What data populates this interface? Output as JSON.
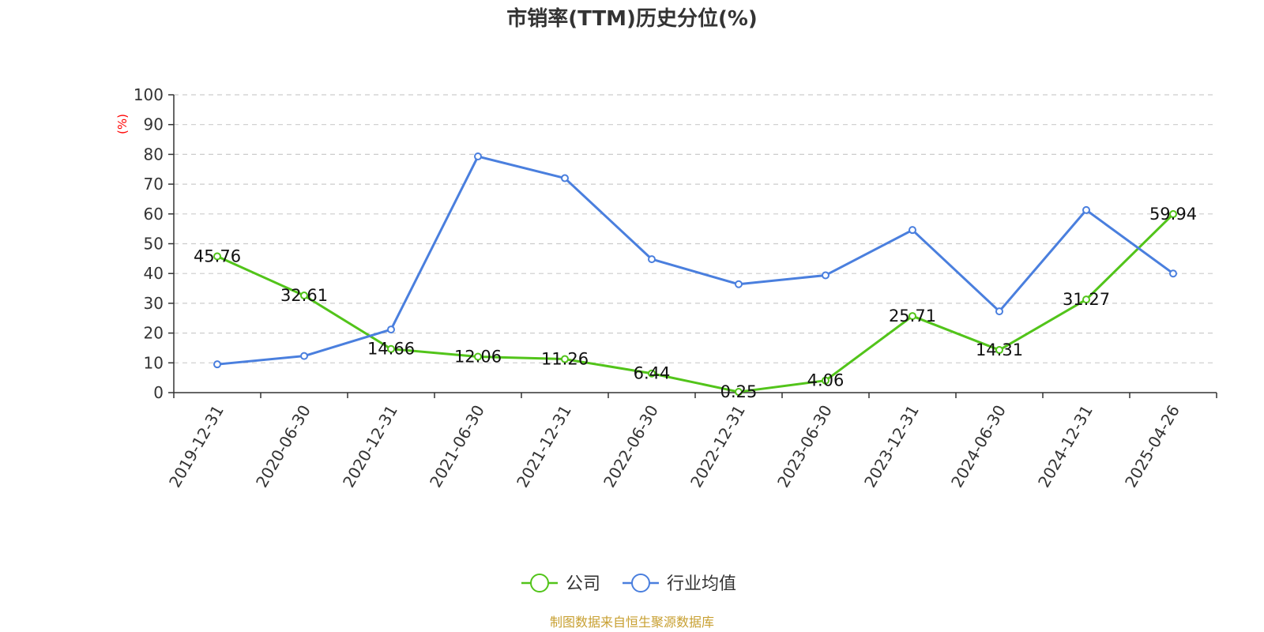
{
  "chart_data": {
    "type": "line",
    "title": "市销率(TTM)历史分位(%)",
    "ylabel": "(%)",
    "ylim": [
      0,
      100
    ],
    "yticks": [
      0,
      10,
      20,
      30,
      40,
      50,
      60,
      70,
      80,
      90,
      100
    ],
    "grid": true,
    "legend_position": "bottom-center",
    "categories": [
      "2019-12-31",
      "2020-06-30",
      "2020-12-31",
      "2021-06-30",
      "2021-12-31",
      "2022-06-30",
      "2022-12-31",
      "2023-06-30",
      "2023-12-31",
      "2024-06-30",
      "2024-12-31",
      "2025-04-26"
    ],
    "series": [
      {
        "name": "公司",
        "color": "#52c41a",
        "show_labels": true,
        "values": [
          45.76,
          32.61,
          14.66,
          12.06,
          11.26,
          6.44,
          0.25,
          4.06,
          25.71,
          14.31,
          31.27,
          59.94
        ]
      },
      {
        "name": "行业均值",
        "color": "#4a7fde",
        "show_labels": false,
        "values": [
          9.5,
          12.3,
          21.2,
          79.3,
          72.0,
          44.8,
          36.4,
          39.4,
          54.6,
          27.3,
          61.3,
          40.0
        ]
      }
    ]
  },
  "source": "制图数据来自恒生聚源数据库",
  "colors": {
    "axis": "#333333",
    "grid": "#cccccc",
    "ylabel": "#ff0000",
    "source": "#c8a032"
  }
}
